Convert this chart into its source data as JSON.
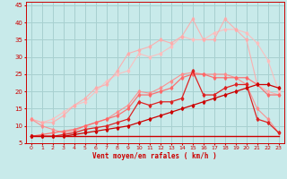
{
  "x": [
    0,
    1,
    2,
    3,
    4,
    5,
    6,
    7,
    8,
    9,
    10,
    11,
    12,
    13,
    14,
    15,
    16,
    17,
    18,
    19,
    20,
    21,
    22,
    23
  ],
  "line_flat": [
    7,
    7,
    7,
    7,
    7,
    7,
    7,
    7,
    7,
    7,
    7,
    7,
    7,
    7,
    7,
    7,
    7,
    7,
    7,
    7,
    7,
    7,
    7,
    7
  ],
  "line_gentle": [
    7,
    7,
    7,
    7,
    7.5,
    8,
    8.5,
    9,
    9.5,
    10,
    11,
    12,
    13,
    14,
    15,
    16,
    17,
    18,
    19,
    20,
    21,
    22,
    22,
    21
  ],
  "line_medium1": [
    7,
    7,
    7,
    7.5,
    8,
    9,
    9.5,
    10,
    11,
    12,
    17,
    16,
    17,
    17,
    18,
    26,
    19,
    19,
    21,
    22,
    22,
    12,
    11,
    8
  ],
  "line_medium2": [
    7,
    7.5,
    8,
    8.5,
    9,
    10,
    11,
    12,
    13,
    15,
    19,
    19,
    20,
    21,
    24,
    25,
    25,
    24,
    24,
    24,
    24,
    22,
    19,
    19
  ],
  "line_light1": [
    12,
    10,
    9,
    8,
    8.5,
    10,
    11,
    12,
    14,
    16,
    20,
    19.5,
    21,
    23,
    25,
    25.5,
    25,
    25,
    25,
    24,
    22,
    15,
    12,
    8
  ],
  "line_light2": [
    12,
    11,
    11,
    13,
    16,
    18,
    21,
    22,
    26,
    31,
    32,
    33,
    35,
    34,
    36,
    41,
    35,
    35,
    41,
    38,
    35,
    22,
    20,
    19
  ],
  "line_lightest": [
    12,
    11,
    12,
    14,
    16,
    17,
    20,
    23,
    25,
    26,
    31,
    30,
    31,
    33,
    36,
    35,
    35,
    37,
    38,
    38,
    37,
    34,
    29,
    20
  ],
  "background_color": "#c8eaea",
  "grid_color": "#a8d0d0",
  "xlabel": "Vent moyen/en rafales ( km/h )",
  "ylim": [
    5,
    46
  ],
  "xlim": [
    -0.5,
    23.5
  ],
  "yticks": [
    5,
    10,
    15,
    20,
    25,
    30,
    35,
    40,
    45
  ],
  "xticks": [
    0,
    1,
    2,
    3,
    4,
    5,
    6,
    7,
    8,
    9,
    10,
    11,
    12,
    13,
    14,
    15,
    16,
    17,
    18,
    19,
    20,
    21,
    22,
    23
  ]
}
